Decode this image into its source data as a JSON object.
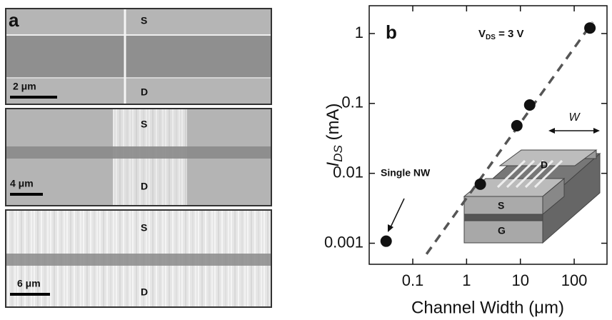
{
  "images": [
    {
      "label": "a",
      "top": "S",
      "bottom": "D",
      "scale": "2 μm"
    },
    {
      "top": "S",
      "bottom": "D",
      "scale": "4 μm"
    },
    {
      "top": "S",
      "bottom": "D",
      "scale": "6 μm"
    }
  ],
  "chart_data": {
    "type": "scatter",
    "panel_label": "b",
    "annotation": {
      "main": "V",
      "sub": "DS",
      "rest": " = 3 V"
    },
    "ylabel": {
      "main": "I",
      "sub": "DS",
      "rest": " (mA)"
    },
    "xlabel": "Channel Width (μm)",
    "x": [
      0.032,
      1.8,
      8.6,
      14.9,
      196
    ],
    "values": [
      0.00107,
      0.007,
      0.048,
      0.095,
      1.2
    ],
    "color": "#111111",
    "fit_line": {
      "x": [
        0.18,
        221
      ],
      "y": [
        0.0007,
        1.46
      ],
      "color": "#555555",
      "dashed": true
    },
    "xlim": [
      0.0155,
      407
    ],
    "ylim": [
      0.0005,
      2.5
    ],
    "xticks": [
      0.1,
      1,
      10,
      100
    ],
    "yticks": [
      0.001,
      0.01,
      0.1,
      1
    ],
    "xlog": true,
    "ylog": true,
    "callout": "Single NW",
    "inset_labels": {
      "width": "W",
      "drain": "D",
      "source": "S",
      "gate": "G"
    }
  }
}
